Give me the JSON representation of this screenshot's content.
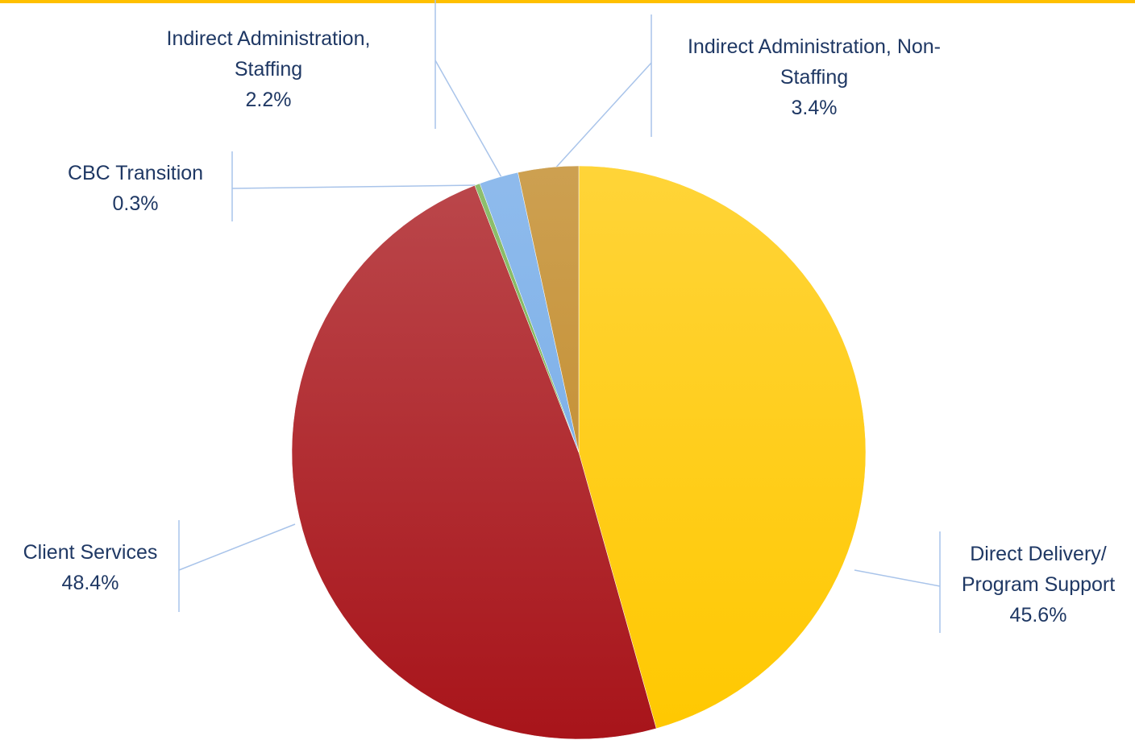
{
  "chart_data": {
    "type": "pie",
    "categories": [
      "Direct Delivery/ Program Support",
      "Client Services",
      "CBC Transition",
      "Indirect Administration, Staffing",
      "Indirect Administration, Non-Staffing"
    ],
    "values": [
      45.6,
      48.4,
      0.3,
      2.2,
      3.4
    ],
    "value_labels": [
      "45.6%",
      "48.4%",
      "0.3%",
      "2.2%",
      "3.4%"
    ],
    "colors": [
      "#ffc800",
      "#a8141a",
      "#70ad47",
      "#6fa8e6",
      "#bf8520"
    ]
  }
}
